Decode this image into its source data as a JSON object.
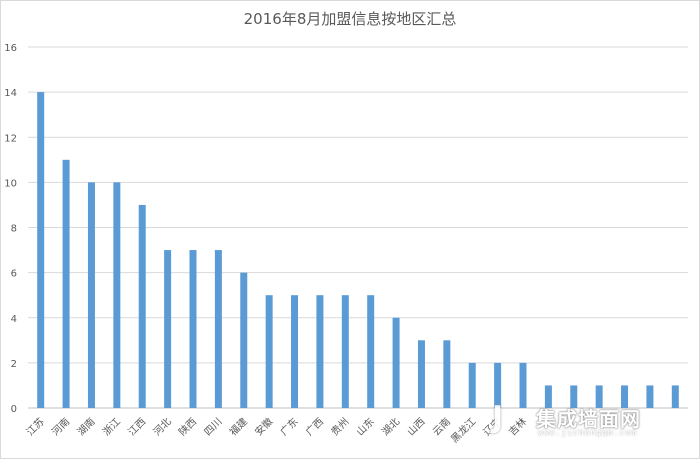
{
  "chart_data": {
    "type": "bar",
    "title": "2016年8月加盟信息按地区汇总",
    "xlabel": "",
    "ylabel": "",
    "ylim": [
      0,
      16
    ],
    "yticks": [
      0,
      2,
      4,
      6,
      8,
      10,
      12,
      14,
      16
    ],
    "grid": true,
    "legend": "none",
    "bar_color": "#5b9bd5",
    "categories": [
      "江苏",
      "河南",
      "湖南",
      "浙江",
      "江西",
      "河北",
      "陕西",
      "四川",
      "福建",
      "安徽",
      "广东",
      "广西",
      "贵州",
      "山东",
      "湖北",
      "山西",
      "云南",
      "黑龙江",
      "辽宁",
      "吉林",
      "",
      "",
      "",
      "",
      "",
      ""
    ],
    "values": [
      14,
      11,
      10,
      10,
      9,
      7,
      7,
      7,
      6,
      5,
      5,
      5,
      5,
      5,
      4,
      3,
      3,
      2,
      2,
      2,
      1,
      1,
      1,
      1,
      1,
      1
    ]
  },
  "watermark": {
    "mark": "J",
    "text": "集成墙面网",
    "sub": "www.jichengqm.com"
  }
}
